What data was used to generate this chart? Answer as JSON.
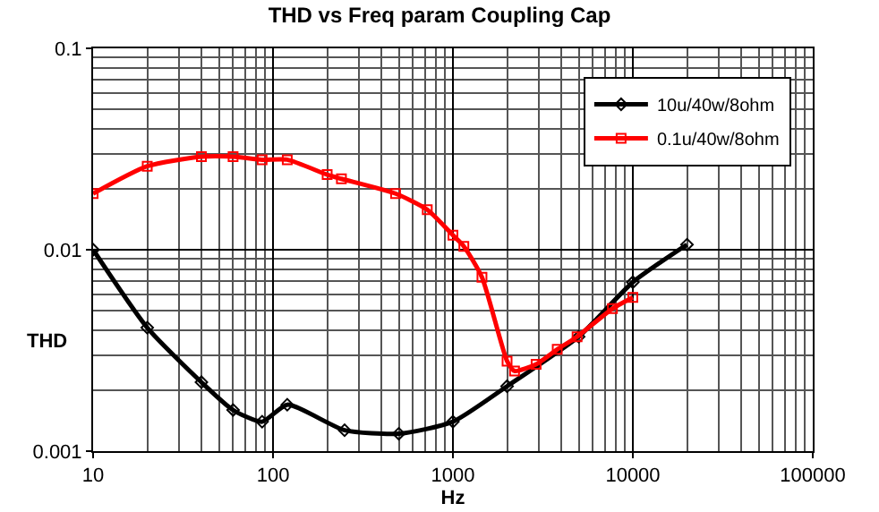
{
  "chart_data": {
    "type": "line",
    "title": "THD vs Freq param Coupling Cap",
    "xlabel": "Hz",
    "ylabel": "THD",
    "log": "xy",
    "grid": true,
    "legend": "top right",
    "xlim": [
      10,
      100000
    ],
    "xticks": [
      10,
      100,
      1000,
      10000,
      100000
    ],
    "ylim": [
      0.001,
      0.1
    ],
    "yticks": [
      0.001,
      0.01,
      0.1
    ],
    "series": [
      {
        "name": "10u/40w/8ohm",
        "color": "#000000",
        "marker": "diamond",
        "x": [
          10,
          20,
          40,
          60,
          87,
          120,
          250,
          500,
          1000,
          2000,
          3000,
          5000,
          10000,
          20000
        ],
        "values": [
          0.01,
          0.0041,
          0.0022,
          0.0016,
          0.0014,
          0.0017,
          0.00127,
          0.00122,
          0.0014,
          0.0021,
          null,
          0.0037,
          0.0069,
          0.0106
        ]
      },
      {
        "name": "0.1u/40w/8ohm",
        "color": "#ff0000",
        "marker": "square",
        "x": [
          10,
          20,
          40,
          60,
          87,
          120,
          200,
          240,
          480,
          720,
          1000,
          1150,
          1450,
          2000,
          2200,
          2900,
          3800,
          4900,
          7700,
          10000
        ],
        "values": [
          0.019,
          0.026,
          0.029,
          0.029,
          0.028,
          0.028,
          0.0236,
          0.0225,
          0.019,
          0.0158,
          0.0118,
          0.0104,
          0.0073,
          0.0028,
          0.0025,
          0.0027,
          0.0032,
          0.0037,
          0.0051,
          0.0058
        ]
      }
    ]
  }
}
